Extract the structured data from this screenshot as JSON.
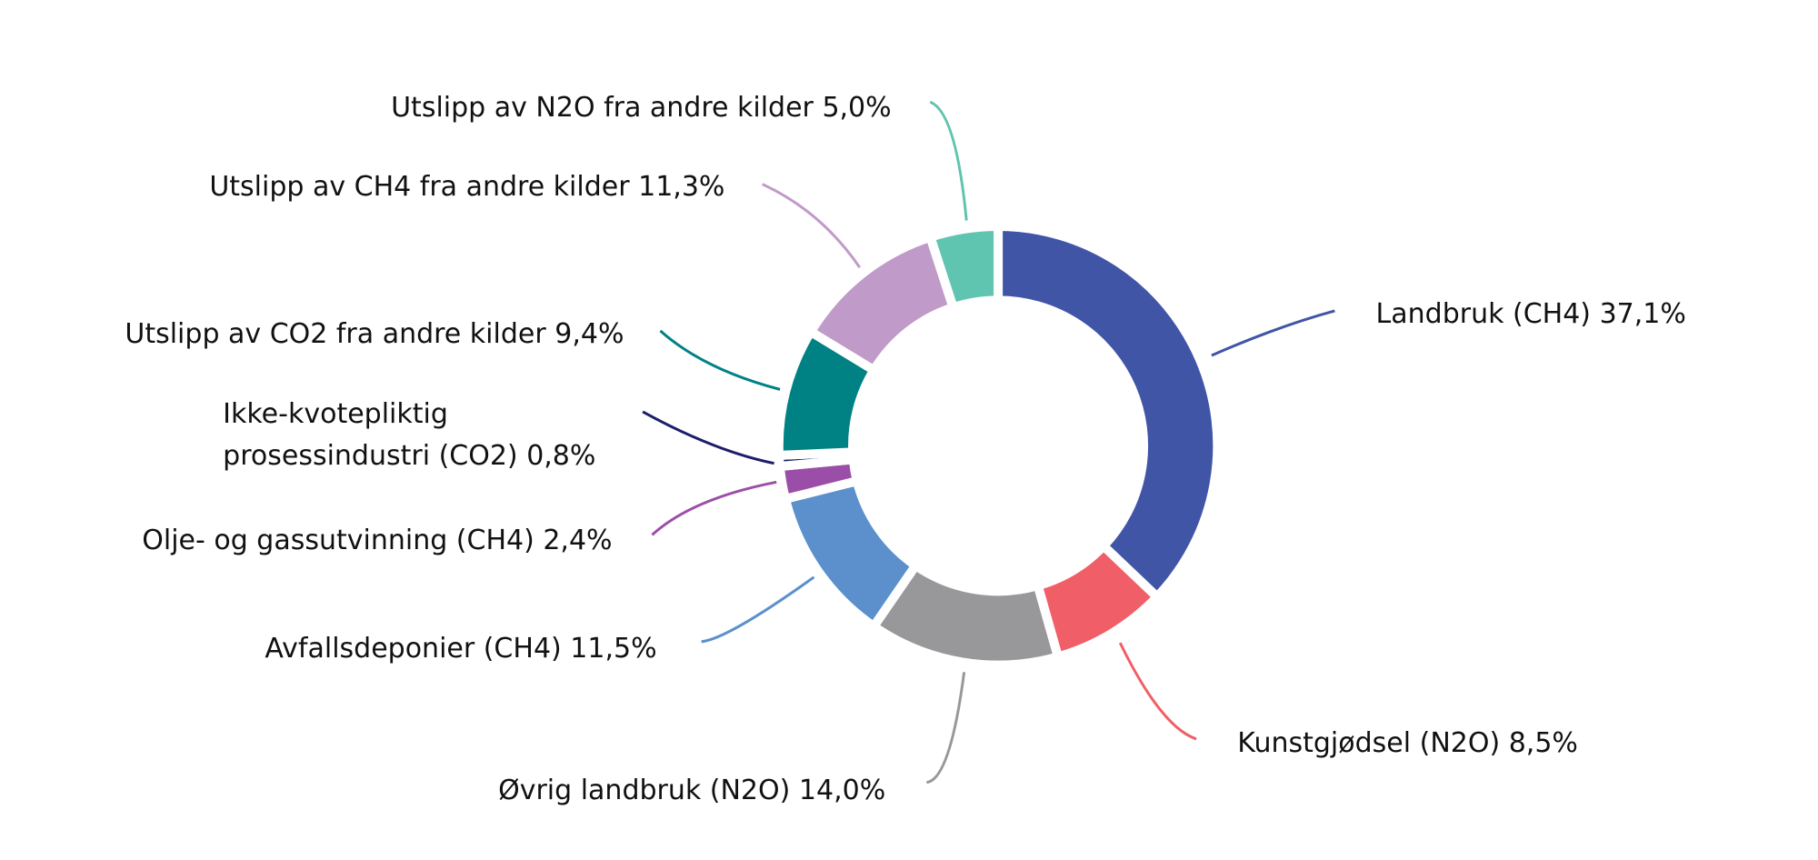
{
  "chart_data": {
    "type": "donut",
    "categories": [
      "Landbruk (CH4)",
      "Kunstgjødsel (N2O)",
      "Øvrig landbruk (N2O)",
      "Avfallsdeponier (CH4)",
      "Olje- og gassutvinning (CH4)",
      "Ikke-kvotepliktig prosessindustri (CO2)",
      "Utslipp av CO2 fra andre kilder",
      "Utslipp av CH4 fra andre kilder",
      "Utslipp av N2O fra andre kilder"
    ],
    "values": [
      37.1,
      8.5,
      14.0,
      11.5,
      2.4,
      0.8,
      9.4,
      11.3,
      5.0
    ],
    "value_labels": [
      "37,1%",
      "8,5%",
      "14,0%",
      "11,5%",
      "2,4%",
      "0,8%",
      "9,4%",
      "11,3%",
      "5,0%"
    ],
    "colors": [
      "#4155a7",
      "#f05f67",
      "#98979a",
      "#5b90cd",
      "#9b4ea7",
      "#1c1e6a",
      "#008285",
      "#c09ac8",
      "#5fc4b0"
    ]
  }
}
